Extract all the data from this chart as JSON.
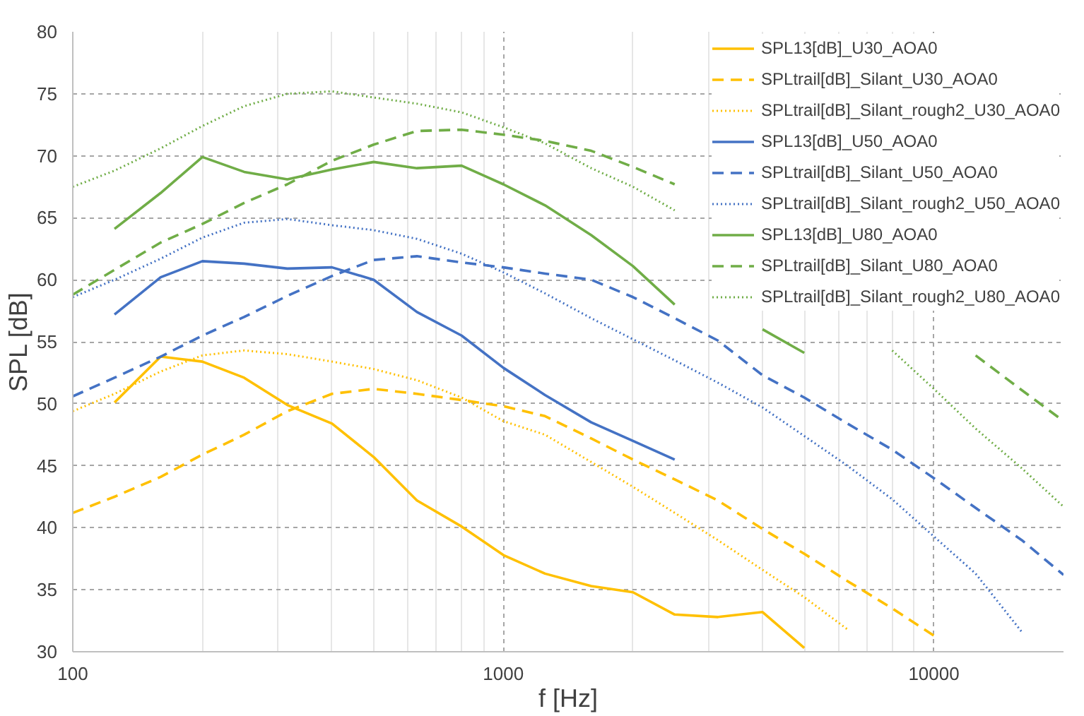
{
  "chart_data": {
    "type": "line",
    "xlabel": "f [Hz]",
    "ylabel": "SPL [dB]",
    "log": "x",
    "grid": true,
    "legend": "top right",
    "marker": "none",
    "xlim": [
      100,
      20000
    ],
    "xticks": [
      100,
      1000,
      10000
    ],
    "ylim": [
      30,
      80
    ],
    "yticks": [
      30,
      35,
      40,
      45,
      50,
      55,
      60,
      65,
      70,
      75,
      80
    ],
    "x": [
      100,
      125,
      160,
      200,
      250,
      315,
      400,
      500,
      630,
      800,
      1000,
      1250,
      1600,
      2000,
      2500,
      3150,
      4000,
      5000,
      6300,
      8000,
      10000,
      12500,
      16000,
      20000
    ],
    "series": [
      {
        "name": "SPL13[dB]_U30_AOA0",
        "color": "#ffc000",
        "line_style": "solid",
        "values": [
          null,
          50.1,
          53.8,
          53.4,
          52.1,
          49.9,
          48.4,
          45.7,
          42.2,
          40.1,
          37.8,
          36.3,
          35.3,
          34.8,
          33.0,
          32.8,
          33.2,
          30.3,
          null,
          null,
          null,
          null,
          null,
          null
        ]
      },
      {
        "name": "SPLtrail[dB]_Silant_U30_AOA0",
        "color": "#ffc000",
        "line_style": "dashed",
        "values": [
          41.2,
          42.5,
          44.1,
          45.9,
          47.5,
          49.4,
          50.8,
          51.2,
          50.8,
          50.3,
          49.8,
          49.0,
          47.2,
          45.5,
          43.9,
          42.2,
          39.9,
          37.9,
          35.7,
          33.5,
          31.3,
          null,
          null,
          null
        ]
      },
      {
        "name": "SPLtrail[dB]_Silant_rough2_U30_AOA0",
        "color": "#ffc000",
        "line_style": "dotted",
        "values": [
          49.4,
          50.8,
          52.6,
          53.9,
          54.3,
          54.0,
          53.4,
          52.8,
          51.9,
          50.5,
          48.6,
          47.5,
          45.3,
          43.3,
          41.2,
          39.0,
          36.6,
          34.4,
          31.8,
          null,
          null,
          null,
          null,
          null
        ]
      },
      {
        "name": "SPL13[dB]_U50_AOA0",
        "color": "#4472c4",
        "line_style": "solid",
        "values": [
          null,
          57.2,
          60.2,
          61.5,
          61.3,
          60.9,
          61.0,
          60.0,
          57.4,
          55.5,
          52.9,
          50.7,
          48.5,
          47.0,
          45.5,
          null,
          null,
          null,
          null,
          null,
          null,
          null,
          null,
          null
        ]
      },
      {
        "name": "SPLtrail[dB]_Silant_U50_AOA0",
        "color": "#4472c4",
        "line_style": "dashed",
        "values": [
          50.6,
          52.1,
          53.8,
          55.5,
          57.0,
          58.7,
          60.3,
          61.6,
          61.9,
          61.4,
          61.0,
          60.5,
          60.0,
          58.6,
          56.9,
          55.1,
          52.3,
          50.5,
          48.4,
          46.3,
          44.0,
          41.6,
          39.0,
          36.2
        ]
      },
      {
        "name": "SPLtrail[dB]_Silant_rough2_U50_AOA0",
        "color": "#4472c4",
        "line_style": "dotted",
        "values": [
          58.6,
          60.0,
          61.7,
          63.4,
          64.6,
          64.9,
          64.4,
          64.0,
          63.3,
          62.1,
          60.6,
          58.9,
          56.9,
          55.2,
          53.5,
          51.7,
          49.7,
          47.4,
          45.0,
          42.3,
          39.3,
          36.3,
          31.6,
          null
        ]
      },
      {
        "name": "SPL13[dB]_U80_AOA0",
        "color": "#70ad47",
        "line_style": "solid",
        "values": [
          null,
          64.1,
          67.0,
          69.9,
          68.7,
          68.1,
          68.9,
          69.5,
          69.0,
          69.2,
          67.7,
          66.0,
          63.6,
          61.1,
          58.0,
          null,
          56.0,
          54.1,
          null,
          null,
          null,
          null,
          null,
          null
        ]
      },
      {
        "name": "SPLtrail[dB]_Silant_U80_AOA0",
        "color": "#70ad47",
        "line_style": "dashed",
        "values": [
          58.8,
          60.8,
          63.0,
          64.5,
          66.2,
          67.7,
          69.6,
          70.9,
          72.0,
          72.1,
          71.7,
          71.2,
          70.4,
          69.1,
          67.7,
          null,
          null,
          null,
          null,
          null,
          null,
          53.9,
          51.1,
          48.6
        ]
      },
      {
        "name": "SPLtrail[dB]_Silant_rough2_U80_AOA0",
        "color": "#70ad47",
        "line_style": "dotted",
        "values": [
          67.5,
          68.8,
          70.6,
          72.4,
          74.0,
          75.0,
          75.2,
          74.7,
          74.2,
          73.5,
          72.3,
          71.0,
          69.0,
          67.5,
          65.6,
          null,
          null,
          null,
          null,
          54.3,
          51.2,
          48.0,
          44.8,
          41.7
        ]
      }
    ]
  }
}
